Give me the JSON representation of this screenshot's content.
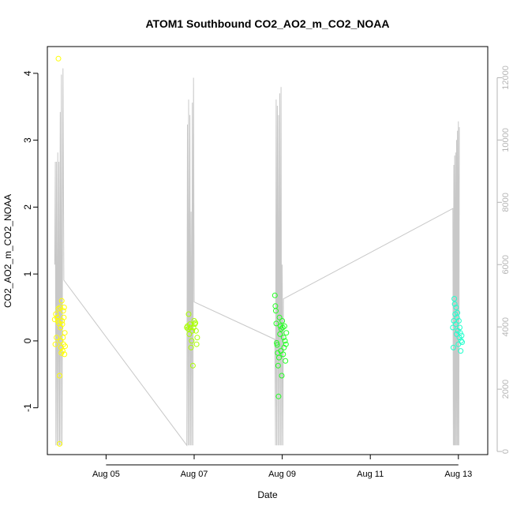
{
  "chart_data": {
    "type": "scatter",
    "title": "ATOM1 Southbound CO2_AO2_m_CO2_NOAA",
    "xlabel": "Date",
    "ylabel": "CO2_AO2_m_CO2_NOAA",
    "ylim": [
      -1.7,
      4.4
    ],
    "y2lim": [
      -100,
      13000
    ],
    "xlim": [
      "2016-08-03T16:00",
      "2016-08-13T16:00"
    ],
    "grid": false,
    "x_ticks": [
      {
        "date": "2016-08-05",
        "label": "Aug 05"
      },
      {
        "date": "2016-08-07",
        "label": "Aug 07"
      },
      {
        "date": "2016-08-09",
        "label": "Aug 09"
      },
      {
        "date": "2016-08-11",
        "label": "Aug 11"
      },
      {
        "date": "2016-08-13",
        "label": "Aug 13"
      }
    ],
    "y_ticks": [
      "-1",
      "0",
      "1",
      "2",
      "3",
      "4"
    ],
    "y2_ticks": [
      "0",
      "2000",
      "4000",
      "6000",
      "8000",
      "10000",
      "12000"
    ],
    "series": [
      {
        "color": "#ffff00",
        "points": [
          [
            "2016-08-03T20:00",
            0.32
          ],
          [
            "2016-08-03T20:20",
            -0.05
          ],
          [
            "2016-08-03T20:40",
            0.4
          ],
          [
            "2016-08-03T21:00",
            0.05
          ],
          [
            "2016-08-03T21:20",
            0.35
          ],
          [
            "2016-08-03T21:40",
            0.3
          ],
          [
            "2016-08-03T22:00",
            4.22
          ],
          [
            "2016-08-03T22:00",
            0.48
          ],
          [
            "2016-08-03T22:20",
            0.26
          ],
          [
            "2016-08-03T22:40",
            -0.52
          ],
          [
            "2016-08-03T22:40",
            -1.54
          ],
          [
            "2016-08-03T23:00",
            0.5
          ],
          [
            "2016-08-03T23:10",
            0.2
          ],
          [
            "2016-08-03T23:20",
            0.0
          ],
          [
            "2016-08-03T23:30",
            -0.1
          ],
          [
            "2016-08-03T23:40",
            -0.18
          ],
          [
            "2016-08-03T23:50",
            0.6
          ],
          [
            "2016-08-04T00:00",
            0.3
          ],
          [
            "2016-08-04T00:10",
            0.25
          ],
          [
            "2016-08-04T00:20",
            -0.15
          ],
          [
            "2016-08-04T00:30",
            0.05
          ],
          [
            "2016-08-04T00:40",
            0.45
          ],
          [
            "2016-08-04T00:50",
            -0.05
          ],
          [
            "2016-08-04T01:00",
            0.35
          ],
          [
            "2016-08-04T01:10",
            0.5
          ],
          [
            "2016-08-04T01:20",
            -0.2
          ],
          [
            "2016-08-04T01:30",
            0.12
          ],
          [
            "2016-08-04T01:40",
            -0.08
          ]
        ]
      },
      {
        "color": "#aaff00",
        "points": [
          [
            "2016-08-06T20:00",
            0.2
          ],
          [
            "2016-08-06T20:20",
            0.22
          ],
          [
            "2016-08-06T20:40",
            0.18
          ],
          [
            "2016-08-06T21:00",
            0.4
          ],
          [
            "2016-08-06T21:20",
            0.1
          ],
          [
            "2016-08-06T21:40",
            0.25
          ],
          [
            "2016-08-06T22:00",
            0.2
          ],
          [
            "2016-08-06T22:20",
            -0.1
          ],
          [
            "2016-08-06T22:40",
            0.0
          ],
          [
            "2016-08-06T23:00",
            0.15
          ],
          [
            "2016-08-06T23:20",
            -0.37
          ],
          [
            "2016-08-06T23:40",
            0.2
          ],
          [
            "2016-08-07T00:00",
            0.3
          ],
          [
            "2016-08-07T00:20",
            0.25
          ],
          [
            "2016-08-07T00:40",
            0.27
          ],
          [
            "2016-08-07T01:00",
            0.15
          ],
          [
            "2016-08-07T01:20",
            -0.05
          ],
          [
            "2016-08-07T01:40",
            0.05
          ]
        ]
      },
      {
        "color": "#22ff22",
        "points": [
          [
            "2016-08-08T20:00",
            0.68
          ],
          [
            "2016-08-08T20:15",
            0.52
          ],
          [
            "2016-08-08T20:30",
            0.45
          ],
          [
            "2016-08-08T20:45",
            0.26
          ],
          [
            "2016-08-08T21:00",
            -0.03
          ],
          [
            "2016-08-08T21:15",
            -0.06
          ],
          [
            "2016-08-08T21:30",
            -0.18
          ],
          [
            "2016-08-08T21:45",
            -0.37
          ],
          [
            "2016-08-08T22:00",
            -0.83
          ],
          [
            "2016-08-08T22:15",
            -0.25
          ],
          [
            "2016-08-08T22:30",
            0.35
          ],
          [
            "2016-08-08T22:45",
            0.1
          ],
          [
            "2016-08-08T23:00",
            0.22
          ],
          [
            "2016-08-08T23:15",
            -0.15
          ],
          [
            "2016-08-08T23:30",
            0.18
          ],
          [
            "2016-08-08T23:45",
            -0.52
          ],
          [
            "2016-08-09T00:00",
            0.3
          ],
          [
            "2016-08-09T00:15",
            0.2
          ],
          [
            "2016-08-09T00:30",
            -0.2
          ],
          [
            "2016-08-09T00:45",
            0.05
          ],
          [
            "2016-08-09T01:00",
            -0.1
          ],
          [
            "2016-08-09T01:15",
            0.22
          ],
          [
            "2016-08-09T01:30",
            0.0
          ],
          [
            "2016-08-09T01:45",
            -0.3
          ],
          [
            "2016-08-09T02:00",
            -0.05
          ],
          [
            "2016-08-09T02:15",
            0.12
          ]
        ]
      },
      {
        "color": "#22ffcc",
        "points": [
          [
            "2016-08-12T21:00",
            0.2
          ],
          [
            "2016-08-12T21:15",
            -0.1
          ],
          [
            "2016-08-12T21:30",
            0.3
          ],
          [
            "2016-08-12T21:45",
            0.63
          ],
          [
            "2016-08-12T22:00",
            0.55
          ],
          [
            "2016-08-12T22:15",
            0.4
          ],
          [
            "2016-08-12T22:30",
            0.25
          ],
          [
            "2016-08-12T22:45",
            0.5
          ],
          [
            "2016-08-12T23:00",
            0.1
          ],
          [
            "2016-08-12T23:15",
            0.35
          ],
          [
            "2016-08-12T23:30",
            0.42
          ],
          [
            "2016-08-12T23:45",
            0.15
          ],
          [
            "2016-08-13T00:00",
            -0.05
          ],
          [
            "2016-08-13T00:15",
            0.3
          ],
          [
            "2016-08-13T00:30",
            0.05
          ],
          [
            "2016-08-13T00:45",
            0.2
          ],
          [
            "2016-08-13T01:00",
            0.12
          ],
          [
            "2016-08-13T01:15",
            -0.15
          ],
          [
            "2016-08-13T01:30",
            0.0
          ],
          [
            "2016-08-13T01:45",
            0.08
          ],
          [
            "2016-08-13T02:00",
            -0.02
          ]
        ]
      }
    ],
    "altitude_line": {
      "axis": "right",
      "color": "#c8c8c8",
      "points": [
        [
          "2016-08-03T20:00",
          6000
        ],
        [
          "2016-08-03T20:20",
          9300
        ],
        [
          "2016-08-03T20:40",
          200
        ],
        [
          "2016-08-03T21:00",
          9300
        ],
        [
          "2016-08-03T21:20",
          200
        ],
        [
          "2016-08-03T21:40",
          9600
        ],
        [
          "2016-08-03T22:00",
          200
        ],
        [
          "2016-08-03T22:20",
          9300
        ],
        [
          "2016-08-03T22:40",
          200
        ],
        [
          "2016-08-03T23:00",
          10900
        ],
        [
          "2016-08-03T23:20",
          200
        ],
        [
          "2016-08-03T23:40",
          12100
        ],
        [
          "2016-08-04T00:00",
          200
        ],
        [
          "2016-08-04T00:30",
          12300
        ],
        [
          "2016-08-04T01:00",
          5500
        ],
        [
          "2016-08-06T20:00",
          200
        ],
        [
          "2016-08-06T20:20",
          10500
        ],
        [
          "2016-08-06T20:40",
          200
        ],
        [
          "2016-08-06T21:00",
          11300
        ],
        [
          "2016-08-06T21:20",
          200
        ],
        [
          "2016-08-06T21:40",
          10800
        ],
        [
          "2016-08-06T22:00",
          200
        ],
        [
          "2016-08-06T22:20",
          7700
        ],
        [
          "2016-08-06T22:40",
          200
        ],
        [
          "2016-08-06T23:00",
          11200
        ],
        [
          "2016-08-06T23:20",
          200
        ],
        [
          "2016-08-06T23:40",
          12000
        ],
        [
          "2016-08-07T00:00",
          4800
        ],
        [
          "2016-08-08T20:00",
          3600
        ],
        [
          "2016-08-08T20:20",
          200
        ],
        [
          "2016-08-08T20:40",
          11300
        ],
        [
          "2016-08-08T21:00",
          200
        ],
        [
          "2016-08-08T21:20",
          11100
        ],
        [
          "2016-08-08T21:40",
          200
        ],
        [
          "2016-08-08T22:00",
          10800
        ],
        [
          "2016-08-08T22:20",
          200
        ],
        [
          "2016-08-08T22:40",
          11500
        ],
        [
          "2016-08-08T23:00",
          200
        ],
        [
          "2016-08-08T23:20",
          11700
        ],
        [
          "2016-08-08T23:40",
          200
        ],
        [
          "2016-08-09T00:00",
          6000
        ],
        [
          "2016-08-09T00:20",
          200
        ],
        [
          "2016-08-09T00:40",
          4900
        ],
        [
          "2016-08-12T21:00",
          7800
        ],
        [
          "2016-08-12T21:15",
          200
        ],
        [
          "2016-08-12T21:30",
          9200
        ],
        [
          "2016-08-12T21:45",
          200
        ],
        [
          "2016-08-12T22:00",
          9500
        ],
        [
          "2016-08-12T22:15",
          200
        ],
        [
          "2016-08-12T22:30",
          9600
        ],
        [
          "2016-08-12T22:45",
          200
        ],
        [
          "2016-08-12T23:00",
          10000
        ],
        [
          "2016-08-12T23:15",
          200
        ],
        [
          "2016-08-12T23:30",
          10300
        ],
        [
          "2016-08-12T23:45",
          200
        ],
        [
          "2016-08-13T00:00",
          10600
        ],
        [
          "2016-08-13T00:15",
          200
        ],
        [
          "2016-08-13T00:30",
          10400
        ],
        [
          "2016-08-13T00:45",
          10400
        ]
      ]
    }
  }
}
